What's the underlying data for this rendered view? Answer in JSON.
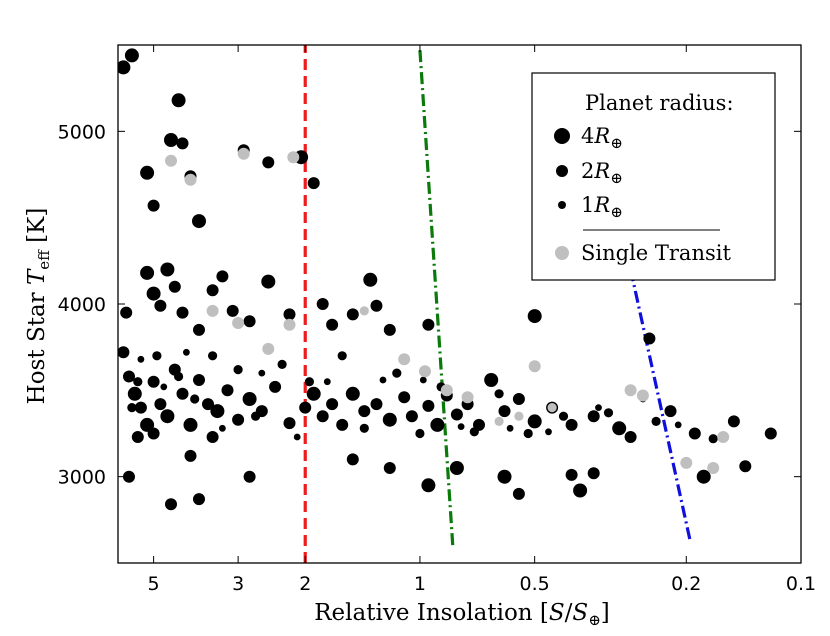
{
  "chart_data": {
    "type": "scatter",
    "title": "",
    "xlabel": "Relative Insolation [S/S⊕]",
    "ylabel": "Host Star T_eff [K]",
    "xlabel_parts": {
      "main": "Relative Insolation [",
      "var": "S",
      "slash": "/",
      "sub_var": "S",
      "sub": "⊕",
      "close": "]"
    },
    "ylabel_parts": {
      "main": "Host Star ",
      "var": "T",
      "sub": "eff",
      "close": " [K]"
    },
    "x_scale": "log-reversed",
    "xlim": [
      6.2,
      0.1
    ],
    "ylim": [
      2500,
      5500
    ],
    "xticks": [
      {
        "value": 5,
        "label": "5"
      },
      {
        "value": 3,
        "label": "3"
      },
      {
        "value": 2,
        "label": "2"
      },
      {
        "value": 1,
        "label": "1"
      },
      {
        "value": 0.5,
        "label": "0.5"
      },
      {
        "value": 0.2,
        "label": "0.2"
      },
      {
        "value": 0.1,
        "label": "0.1"
      }
    ],
    "yticks": [
      {
        "value": 3000,
        "label": "3000"
      },
      {
        "value": 4000,
        "label": "4000"
      },
      {
        "value": 5000,
        "label": "5000"
      }
    ],
    "grid": false,
    "reference_lines": [
      {
        "name": "runaway-greenhouse",
        "color": "#ee1c1c",
        "style": "dashed",
        "points": [
          [
            2.0,
            2500
          ],
          [
            2.0,
            5500
          ]
        ]
      },
      {
        "name": "inner-habitable-edge",
        "color": "#0a7a0a",
        "style": "dashdot",
        "points": [
          [
            1.0,
            5470
          ],
          [
            0.82,
            2600
          ]
        ]
      },
      {
        "name": "outer-habitable-edge",
        "color": "#1010dd",
        "style": "dashdot",
        "points": [
          [
            0.28,
            4200
          ],
          [
            0.195,
            2620
          ]
        ]
      }
    ],
    "series": [
      {
        "name": "Planets (multi-transit)",
        "color": "#000000",
        "points": [
          [
            6.0,
            5370,
            4
          ],
          [
            5.7,
            5440,
            4
          ],
          [
            5.2,
            4760,
            4
          ],
          [
            5.0,
            4570,
            3
          ],
          [
            4.5,
            4950,
            4
          ],
          [
            4.3,
            5180,
            4
          ],
          [
            4.2,
            4930,
            3
          ],
          [
            4.0,
            4740,
            3
          ],
          [
            3.8,
            4480,
            4
          ],
          [
            2.9,
            4890,
            3
          ],
          [
            2.5,
            4820,
            3
          ],
          [
            2.05,
            4850,
            4
          ],
          [
            1.9,
            4700,
            3
          ],
          [
            5.9,
            3950,
            3
          ],
          [
            5.2,
            4180,
            4
          ],
          [
            5.0,
            4060,
            4
          ],
          [
            4.8,
            3990,
            3
          ],
          [
            4.6,
            4200,
            4
          ],
          [
            4.4,
            4100,
            3
          ],
          [
            4.2,
            3950,
            3
          ],
          [
            3.8,
            3850,
            3
          ],
          [
            3.5,
            4080,
            3
          ],
          [
            3.3,
            4160,
            3
          ],
          [
            3.1,
            3960,
            3
          ],
          [
            2.8,
            3900,
            3
          ],
          [
            2.5,
            4130,
            4
          ],
          [
            2.2,
            3940,
            3
          ],
          [
            1.8,
            4000,
            3
          ],
          [
            1.7,
            3880,
            3
          ],
          [
            1.5,
            3940,
            3
          ],
          [
            1.35,
            4140,
            4
          ],
          [
            1.3,
            3990,
            3
          ],
          [
            1.2,
            3850,
            3
          ],
          [
            0.95,
            3880,
            3
          ],
          [
            0.5,
            3930,
            4
          ],
          [
            0.25,
            3800,
            3
          ],
          [
            6.0,
            3720,
            3
          ],
          [
            5.8,
            3580,
            3
          ],
          [
            5.6,
            3480,
            4
          ],
          [
            5.4,
            3400,
            3
          ],
          [
            5.2,
            3300,
            4
          ],
          [
            5.0,
            3550,
            3
          ],
          [
            4.8,
            3420,
            3
          ],
          [
            4.6,
            3350,
            4
          ],
          [
            4.4,
            3620,
            3
          ],
          [
            4.2,
            3480,
            3
          ],
          [
            4.0,
            3300,
            4
          ],
          [
            3.8,
            3560,
            3
          ],
          [
            3.6,
            3420,
            3
          ],
          [
            3.4,
            3380,
            4
          ],
          [
            3.2,
            3500,
            3
          ],
          [
            3.0,
            3330,
            3
          ],
          [
            2.8,
            3450,
            4
          ],
          [
            2.6,
            3380,
            3
          ],
          [
            2.4,
            3520,
            3
          ],
          [
            2.2,
            3310,
            3
          ],
          [
            2.0,
            3400,
            3
          ],
          [
            1.9,
            3480,
            4
          ],
          [
            1.8,
            3350,
            3
          ],
          [
            1.7,
            3420,
            3
          ],
          [
            1.6,
            3300,
            3
          ],
          [
            1.5,
            3480,
            4
          ],
          [
            1.4,
            3380,
            3
          ],
          [
            1.3,
            3420,
            3
          ],
          [
            1.2,
            3330,
            4
          ],
          [
            1.1,
            3460,
            3
          ],
          [
            1.05,
            3350,
            3
          ],
          [
            0.95,
            3410,
            3
          ],
          [
            0.9,
            3300,
            4
          ],
          [
            0.85,
            3470,
            3
          ],
          [
            0.8,
            3360,
            3
          ],
          [
            0.75,
            3420,
            3
          ],
          [
            0.7,
            3300,
            3
          ],
          [
            0.65,
            3560,
            4
          ],
          [
            0.6,
            3380,
            3
          ],
          [
            0.55,
            3450,
            3
          ],
          [
            0.5,
            3320,
            4
          ],
          [
            0.45,
            3400,
            3
          ],
          [
            0.4,
            3300,
            3
          ],
          [
            0.35,
            3350,
            3
          ],
          [
            0.3,
            3280,
            4
          ],
          [
            0.28,
            3230,
            3
          ],
          [
            0.22,
            3380,
            3
          ],
          [
            0.19,
            3250,
            3
          ],
          [
            0.15,
            3320,
            3
          ],
          [
            0.12,
            3250,
            3
          ],
          [
            5.5,
            3230,
            3
          ],
          [
            5.0,
            3250,
            3
          ],
          [
            4.0,
            3120,
            3
          ],
          [
            3.5,
            3230,
            3
          ],
          [
            2.8,
            3000,
            3
          ],
          [
            1.5,
            3100,
            3
          ],
          [
            1.2,
            3050,
            3
          ],
          [
            0.95,
            2950,
            4
          ],
          [
            0.8,
            3050,
            4
          ],
          [
            0.6,
            3000,
            4
          ],
          [
            0.55,
            2900,
            3
          ],
          [
            0.4,
            3010,
            3
          ],
          [
            0.38,
            2920,
            4
          ],
          [
            0.18,
            3000,
            4
          ],
          [
            0.14,
            3060,
            3
          ],
          [
            5.8,
            3000,
            3
          ],
          [
            4.5,
            2840,
            3
          ],
          [
            3.8,
            2870,
            3
          ],
          [
            0.35,
            3020,
            3
          ],
          [
            5.7,
            3400,
            2
          ],
          [
            5.5,
            3550,
            2
          ],
          [
            4.9,
            3700,
            2
          ],
          [
            4.3,
            3580,
            2
          ],
          [
            3.9,
            3450,
            2
          ],
          [
            3.5,
            3700,
            2
          ],
          [
            3.0,
            3620,
            2
          ],
          [
            2.7,
            3350,
            2
          ],
          [
            2.3,
            3650,
            2
          ],
          [
            1.95,
            3550,
            2
          ],
          [
            1.6,
            3700,
            2
          ],
          [
            1.4,
            3280,
            2
          ],
          [
            1.15,
            3600,
            2
          ],
          [
            1.0,
            3250,
            2
          ],
          [
            0.88,
            3520,
            2
          ],
          [
            0.72,
            3260,
            2
          ],
          [
            0.62,
            3480,
            2
          ],
          [
            0.52,
            3250,
            2
          ],
          [
            0.42,
            3350,
            2
          ],
          [
            0.32,
            3370,
            2
          ],
          [
            0.24,
            3320,
            2
          ],
          [
            0.17,
            3220,
            2
          ],
          [
            5.4,
            3680,
            1
          ],
          [
            4.7,
            3520,
            1
          ],
          [
            4.1,
            3720,
            1
          ],
          [
            3.3,
            3280,
            1
          ],
          [
            2.6,
            3600,
            1
          ],
          [
            2.1,
            3230,
            1
          ],
          [
            1.75,
            3550,
            1
          ],
          [
            1.25,
            3560,
            1
          ],
          [
            0.98,
            3560,
            1
          ],
          [
            0.78,
            3290,
            1
          ],
          [
            0.58,
            3280,
            1
          ],
          [
            0.46,
            3260,
            1
          ],
          [
            0.34,
            3400,
            1
          ],
          [
            0.26,
            3450,
            1
          ],
          [
            0.21,
            3300,
            1
          ]
        ]
      },
      {
        "name": "Single Transit",
        "color": "#bfbfbf",
        "points": [
          [
            4.5,
            4830,
            3
          ],
          [
            4.0,
            4720,
            3
          ],
          [
            2.9,
            4870,
            3
          ],
          [
            2.15,
            4850,
            3
          ],
          [
            3.5,
            3960,
            3
          ],
          [
            3.0,
            3890,
            3
          ],
          [
            2.5,
            3740,
            3
          ],
          [
            2.2,
            3880,
            3
          ],
          [
            1.4,
            3960,
            2
          ],
          [
            1.1,
            3680,
            3
          ],
          [
            0.97,
            3610,
            3
          ],
          [
            0.85,
            3500,
            3
          ],
          [
            0.75,
            3460,
            3
          ],
          [
            0.5,
            3640,
            3
          ],
          [
            0.45,
            3400,
            2
          ],
          [
            0.28,
            3500,
            3
          ],
          [
            0.26,
            3470,
            3
          ],
          [
            0.2,
            3080,
            3
          ],
          [
            0.17,
            3050,
            3
          ],
          [
            0.16,
            3230,
            3
          ],
          [
            0.55,
            3350,
            2
          ],
          [
            0.62,
            3320,
            2
          ]
        ]
      }
    ],
    "legend": {
      "position": "top-right",
      "title": "Planet radius:",
      "entries": [
        {
          "label": "4",
          "unit": "R",
          "sub": "⊕",
          "size": 4,
          "color": "#000000"
        },
        {
          "label": "2",
          "unit": "R",
          "sub": "⊕",
          "size": 2,
          "color": "#000000"
        },
        {
          "label": "1",
          "unit": "R",
          "sub": "⊕",
          "size": 1,
          "color": "#000000"
        },
        {
          "label": "Single Transit",
          "size": 3,
          "color": "#bfbfbf"
        }
      ]
    }
  }
}
